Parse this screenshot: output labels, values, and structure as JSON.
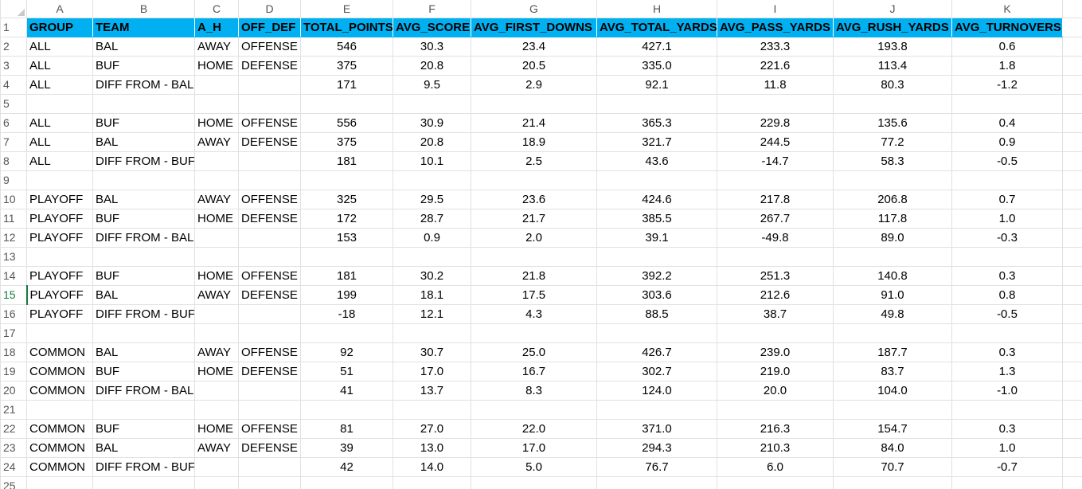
{
  "columns": [
    "A",
    "B",
    "C",
    "D",
    "E",
    "F",
    "G",
    "H",
    "I",
    "J",
    "K"
  ],
  "header": [
    "GROUP",
    "TEAM",
    "A_H",
    "OFF_DEF",
    "TOTAL_POINTS",
    "AVG_SCORE",
    "AVG_FIRST_DOWNS",
    "AVG_TOTAL_YARDS",
    "AVG_PASS_YARDS",
    "AVG_RUSH_YARDS",
    "AVG_TURNOVERS"
  ],
  "rows": [
    [
      "ALL",
      "BAL",
      "AWAY",
      "OFFENSE",
      "546",
      "30.3",
      "23.4",
      "427.1",
      "233.3",
      "193.8",
      "0.6"
    ],
    [
      "ALL",
      "BUF",
      "HOME",
      "DEFENSE",
      "375",
      "20.8",
      "20.5",
      "335.0",
      "221.6",
      "113.4",
      "1.8"
    ],
    [
      "ALL",
      "DIFF FROM - BAL",
      "",
      "",
      "171",
      "9.5",
      "2.9",
      "92.1",
      "11.8",
      "80.3",
      "-1.2"
    ],
    [
      "",
      "",
      "",
      "",
      "",
      "",
      "",
      "",
      "",
      "",
      ""
    ],
    [
      "ALL",
      "BUF",
      "HOME",
      "OFFENSE",
      "556",
      "30.9",
      "21.4",
      "365.3",
      "229.8",
      "135.6",
      "0.4"
    ],
    [
      "ALL",
      "BAL",
      "AWAY",
      "DEFENSE",
      "375",
      "20.8",
      "18.9",
      "321.7",
      "244.5",
      "77.2",
      "0.9"
    ],
    [
      "ALL",
      "DIFF FROM - BUF",
      "",
      "",
      "181",
      "10.1",
      "2.5",
      "43.6",
      "-14.7",
      "58.3",
      "-0.5"
    ],
    [
      "",
      "",
      "",
      "",
      "",
      "",
      "",
      "",
      "",
      "",
      ""
    ],
    [
      "PLAYOFF",
      "BAL",
      "AWAY",
      "OFFENSE",
      "325",
      "29.5",
      "23.6",
      "424.6",
      "217.8",
      "206.8",
      "0.7"
    ],
    [
      "PLAYOFF",
      "BUF",
      "HOME",
      "DEFENSE",
      "172",
      "28.7",
      "21.7",
      "385.5",
      "267.7",
      "117.8",
      "1.0"
    ],
    [
      "PLAYOFF",
      "DIFF FROM - BAL",
      "",
      "",
      "153",
      "0.9",
      "2.0",
      "39.1",
      "-49.8",
      "89.0",
      "-0.3"
    ],
    [
      "",
      "",
      "",
      "",
      "",
      "",
      "",
      "",
      "",
      "",
      ""
    ],
    [
      "PLAYOFF",
      "BUF",
      "HOME",
      "OFFENSE",
      "181",
      "30.2",
      "21.8",
      "392.2",
      "251.3",
      "140.8",
      "0.3"
    ],
    [
      "PLAYOFF",
      "BAL",
      "AWAY",
      "DEFENSE",
      "199",
      "18.1",
      "17.5",
      "303.6",
      "212.6",
      "91.0",
      "0.8"
    ],
    [
      "PLAYOFF",
      "DIFF FROM - BUF",
      "",
      "",
      "-18",
      "12.1",
      "4.3",
      "88.5",
      "38.7",
      "49.8",
      "-0.5"
    ],
    [
      "",
      "",
      "",
      "",
      "",
      "",
      "",
      "",
      "",
      "",
      ""
    ],
    [
      "COMMON",
      "BAL",
      "AWAY",
      "OFFENSE",
      "92",
      "30.7",
      "25.0",
      "426.7",
      "239.0",
      "187.7",
      "0.3"
    ],
    [
      "COMMON",
      "BUF",
      "HOME",
      "DEFENSE",
      "51",
      "17.0",
      "16.7",
      "302.7",
      "219.0",
      "83.7",
      "1.3"
    ],
    [
      "COMMON",
      "DIFF FROM - BAL",
      "",
      "",
      "41",
      "13.7",
      "8.3",
      "124.0",
      "20.0",
      "104.0",
      "-1.0"
    ],
    [
      "",
      "",
      "",
      "",
      "",
      "",
      "",
      "",
      "",
      "",
      ""
    ],
    [
      "COMMON",
      "BUF",
      "HOME",
      "OFFENSE",
      "81",
      "27.0",
      "22.0",
      "371.0",
      "216.3",
      "154.7",
      "0.3"
    ],
    [
      "COMMON",
      "BAL",
      "AWAY",
      "DEFENSE",
      "39",
      "13.0",
      "17.0",
      "294.3",
      "210.3",
      "84.0",
      "1.0"
    ],
    [
      "COMMON",
      "DIFF FROM - BUF",
      "",
      "",
      "42",
      "14.0",
      "5.0",
      "76.7",
      "6.0",
      "70.7",
      "-0.7"
    ]
  ],
  "row_numbers": [
    "1",
    "2",
    "3",
    "4",
    "5",
    "6",
    "7",
    "8",
    "9",
    "10",
    "11",
    "12",
    "13",
    "14",
    "15",
    "16",
    "17",
    "18",
    "19",
    "20",
    "21",
    "22",
    "23",
    "24",
    "25"
  ],
  "active_row": "15",
  "colors": {
    "header_fill": "#00b0f0",
    "gridline": "#e1e1e1",
    "active_accent": "#107c41"
  }
}
